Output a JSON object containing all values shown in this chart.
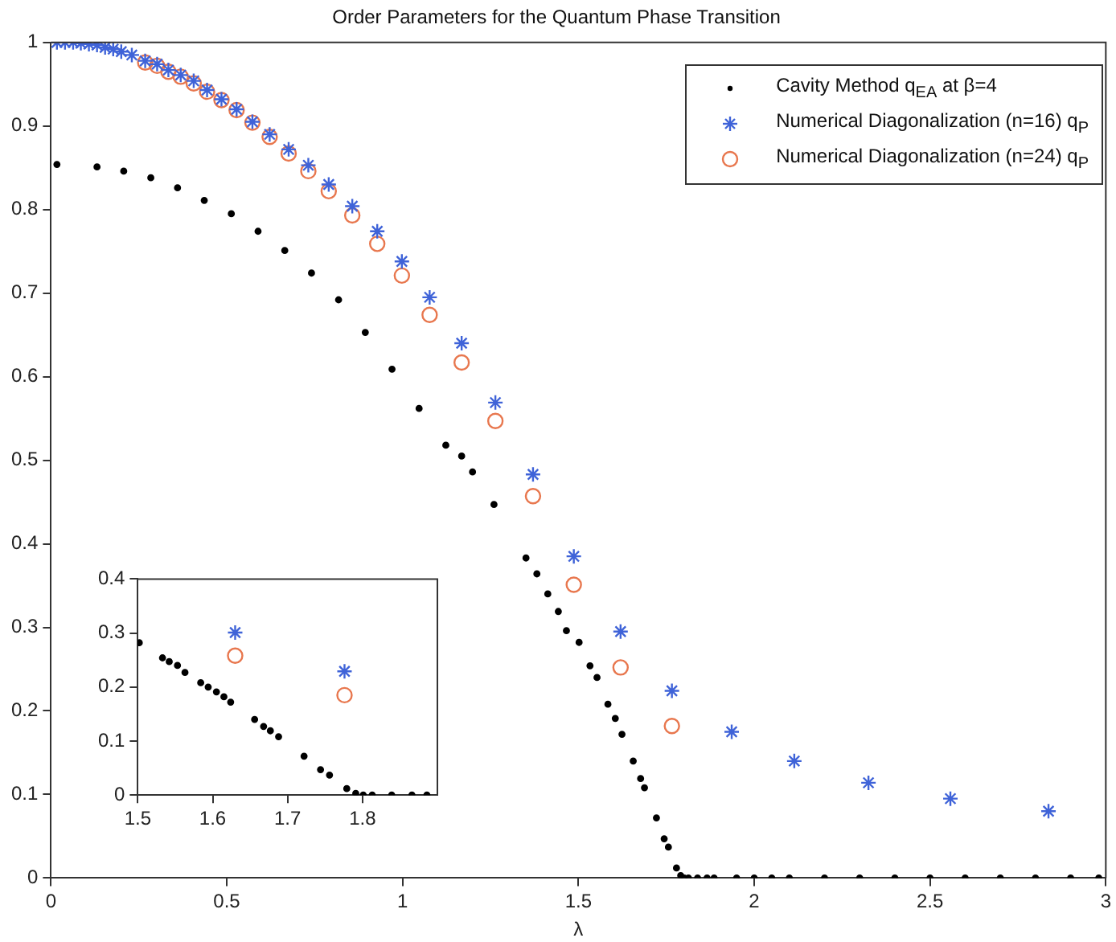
{
  "chart_data": [
    {
      "type": "scatter",
      "title": "Order Parameters for the Quantum Phase Transition",
      "xlabel": "λ",
      "xlim": [
        0,
        3
      ],
      "xticks": [
        0,
        0.5,
        1,
        1.5,
        2,
        2.5,
        3
      ],
      "ylim": [
        0,
        1
      ],
      "yticks": [
        0,
        0.1,
        0.2,
        0.3,
        0.4,
        0.5,
        0.6,
        0.7,
        0.8,
        0.9,
        1
      ],
      "legend": "top right",
      "series": [
        {
          "name": "Cavity Method q$_{EA}$ at β=4",
          "color": "#000000",
          "marker": "circle",
          "x": [
            0.017,
            0.131,
            0.207,
            0.284,
            0.36,
            0.436,
            0.513,
            0.589,
            0.665,
            0.741,
            0.818,
            0.894,
            0.97,
            1.047,
            1.123,
            1.168,
            1.199,
            1.26,
            1.351,
            1.382,
            1.413,
            1.443,
            1.466,
            1.502,
            1.533,
            1.553,
            1.584,
            1.605,
            1.624,
            1.656,
            1.677,
            1.688,
            1.722,
            1.744,
            1.756,
            1.779,
            1.791,
            1.801,
            1.813,
            1.839,
            1.866,
            1.886,
            1.95,
            2.0,
            2.05,
            2.1,
            2.2,
            2.3,
            2.4,
            2.5,
            2.6,
            2.7,
            2.8,
            2.9,
            2.98
          ],
          "values": [
            0.854,
            0.851,
            0.846,
            0.838,
            0.826,
            0.811,
            0.795,
            0.774,
            0.751,
            0.724,
            0.692,
            0.653,
            0.609,
            0.562,
            0.518,
            0.505,
            0.486,
            0.447,
            0.383,
            0.364,
            0.34,
            0.319,
            0.296,
            0.282,
            0.254,
            0.24,
            0.208,
            0.191,
            0.172,
            0.14,
            0.119,
            0.108,
            0.072,
            0.047,
            0.037,
            0.012,
            0.003,
            0,
            0,
            0,
            0,
            0,
            0,
            0,
            0,
            0,
            0,
            0,
            0,
            0,
            0,
            0,
            0,
            0,
            0
          ]
        },
        {
          "name": "Numerical Diagonalization (n=16) q$_{P}$",
          "color": "#3f63d8",
          "marker": "cross",
          "x": [
            0.017,
            0.04,
            0.063,
            0.085,
            0.108,
            0.131,
            0.154,
            0.177,
            0.2,
            0.23,
            0.268,
            0.302,
            0.334,
            0.369,
            0.406,
            0.444,
            0.485,
            0.528,
            0.573,
            0.622,
            0.676,
            0.732,
            0.79,
            0.857,
            0.928,
            0.998,
            1.077,
            1.168,
            1.264,
            1.371,
            1.487,
            1.62,
            1.766,
            1.936,
            2.114,
            2.325,
            2.558,
            2.837
          ],
          "values": [
            1.0,
            1.0,
            1.0,
            0.999,
            0.998,
            0.997,
            0.994,
            0.992,
            0.989,
            0.985,
            0.978,
            0.974,
            0.967,
            0.961,
            0.954,
            0.943,
            0.932,
            0.92,
            0.905,
            0.89,
            0.872,
            0.853,
            0.83,
            0.804,
            0.774,
            0.738,
            0.695,
            0.64,
            0.569,
            0.483,
            0.385,
            0.295,
            0.224,
            0.175,
            0.14,
            0.114,
            0.095,
            0.08
          ]
        },
        {
          "name": "Numerical Diagonalization (n=24) q$_{P}$",
          "color": "#e8774e",
          "marker": "circle",
          "x": [
            0.268,
            0.302,
            0.334,
            0.369,
            0.406,
            0.444,
            0.485,
            0.528,
            0.573,
            0.622,
            0.676,
            0.732,
            0.79,
            0.857,
            0.928,
            0.998,
            1.077,
            1.168,
            1.264,
            1.371,
            1.487,
            1.62,
            1.766
          ],
          "values": [
            0.976,
            0.972,
            0.965,
            0.959,
            0.951,
            0.941,
            0.931,
            0.919,
            0.904,
            0.887,
            0.867,
            0.846,
            0.822,
            0.793,
            0.759,
            0.721,
            0.674,
            0.617,
            0.547,
            0.457,
            0.351,
            0.252,
            0.182
          ]
        }
      ]
    },
    {
      "type": "scatter",
      "xlim": [
        1.5,
        1.9
      ],
      "xticks": [
        1.5,
        1.6,
        1.7,
        1.8
      ],
      "ylim": [
        0,
        0.4
      ],
      "yticks": [
        0,
        0.1,
        0.2,
        0.3,
        0.4
      ],
      "series": [
        {
          "color": "#000000",
          "marker": "circle",
          "x": [
            1.502,
            1.533,
            1.542,
            1.553,
            1.563,
            1.584,
            1.594,
            1.605,
            1.615,
            1.624,
            1.656,
            1.668,
            1.677,
            1.688,
            1.722,
            1.744,
            1.756,
            1.779,
            1.791,
            1.801,
            1.813,
            1.839,
            1.866,
            1.886
          ],
          "values": [
            0.282,
            0.254,
            0.247,
            0.24,
            0.227,
            0.208,
            0.2,
            0.191,
            0.182,
            0.172,
            0.14,
            0.127,
            0.119,
            0.108,
            0.072,
            0.047,
            0.037,
            0.012,
            0.003,
            0,
            0,
            0,
            0,
            0
          ]
        },
        {
          "color": "#3f63d8",
          "marker": "cross",
          "x": [
            1.63,
            1.776
          ],
          "values": [
            0.301,
            0.229
          ]
        },
        {
          "color": "#e8774e",
          "marker": "circle",
          "x": [
            1.63,
            1.776
          ],
          "values": [
            0.258,
            0.185
          ]
        }
      ]
    }
  ]
}
